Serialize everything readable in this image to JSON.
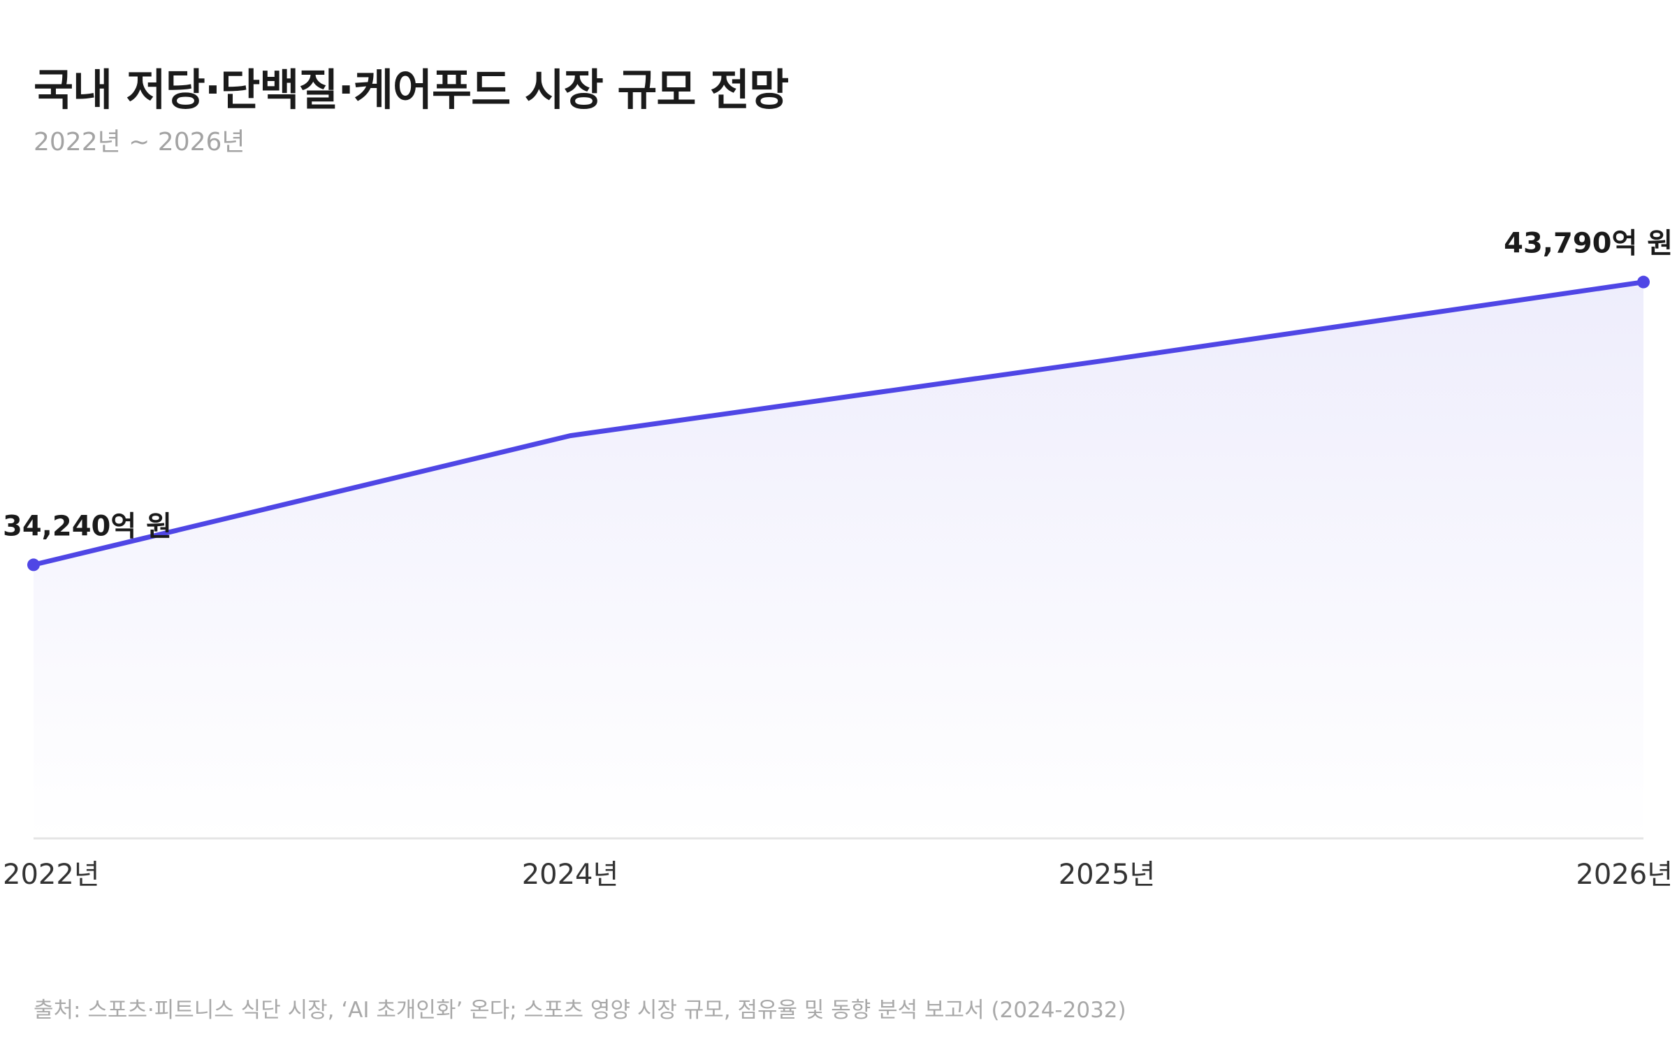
{
  "header": {
    "title": "국내 저당·단백질·케어푸드 시장 규모 전망",
    "subtitle": "2022년 ~ 2026년"
  },
  "footer": {
    "source": "출처: 스포츠·피트니스 식단 시장, ‘AI 초개인화’ 온다; 스포츠 영양 시장 규모, 점유율 및 동향 분석 보고서 (2024-2032)"
  },
  "colors": {
    "line": "#4f46e5",
    "area_top": "#eeedfc",
    "baseline": "#e5e5e5"
  },
  "chart_data": {
    "type": "area",
    "categories": [
      "2022년",
      "2024년",
      "2025년",
      "2026년"
    ],
    "values": [
      34240,
      38600,
      41150,
      43790
    ],
    "data_labels": [
      {
        "index": 0,
        "text": "34,240억 원"
      },
      {
        "index": 3,
        "text": "43,790억 원"
      }
    ],
    "ylim": [
      25000,
      46000
    ],
    "grid": false,
    "legend": "none"
  }
}
